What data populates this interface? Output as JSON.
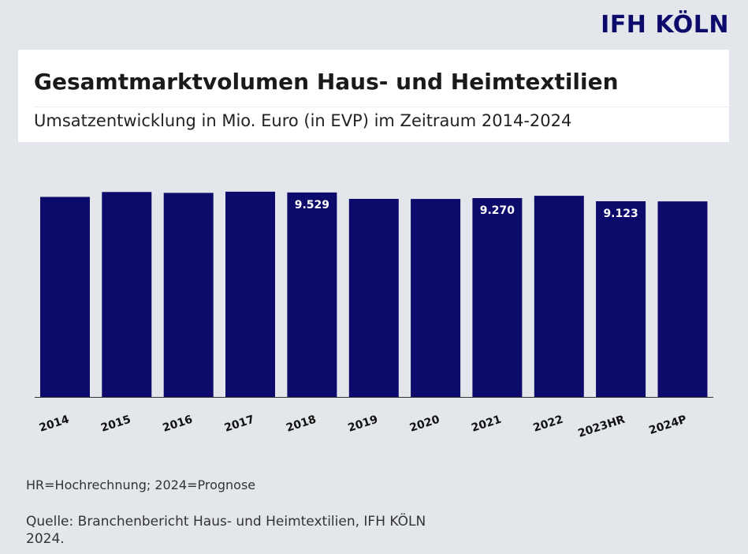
{
  "brand": "IFH KÖLN",
  "title": "Gesamtmarktvolumen Haus- und Heimtextilien",
  "subtitle": "Umsatzentwicklung in Mio. Euro (in EVP) im Zeitraum 2014-2024",
  "footnote": "HR=Hochrechnung; 2024=Prognose",
  "source": "Quelle: Branchenbericht Haus- und Heimtextilien, IFH KÖLN 2024.",
  "colors": {
    "bar": "#0c0a6b",
    "background": "#e3e6ea",
    "axis": "#333333"
  },
  "chart_data": {
    "type": "bar",
    "categories": [
      "2014",
      "2015",
      "2016",
      "2017",
      "2018",
      "2019",
      "2020",
      "2021",
      "2022",
      "2023HR",
      "2024P"
    ],
    "values": [
      9.323,
      9.553,
      9.513,
      9.567,
      9.529,
      9.233,
      9.227,
      9.27,
      9.377,
      9.123,
      9.113
    ],
    "data_labels": [
      null,
      null,
      null,
      null,
      "9.529",
      null,
      null,
      "9.270",
      null,
      "9.123",
      null
    ],
    "ylim": [
      0,
      9.6
    ],
    "grid": false,
    "legend": "none",
    "xlabel": "",
    "ylabel": ""
  }
}
